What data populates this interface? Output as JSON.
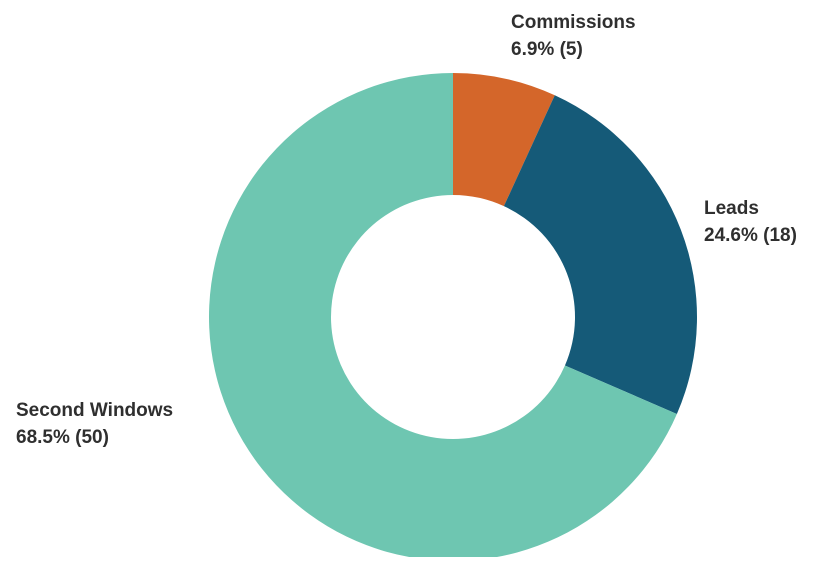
{
  "chart_data": {
    "type": "pie",
    "donut": true,
    "title": "",
    "legend": "none",
    "slices": [
      {
        "label": "Commissions",
        "value": 5,
        "percent_text": "6.9% (5)",
        "color": "#d4662a"
      },
      {
        "label": "Leads",
        "value": 18,
        "percent_text": "24.6% (18)",
        "color": "#155a78"
      },
      {
        "label": "Second Windows",
        "value": 50,
        "percent_text": "68.5% (50)",
        "color": "#6ec6b1"
      }
    ]
  }
}
